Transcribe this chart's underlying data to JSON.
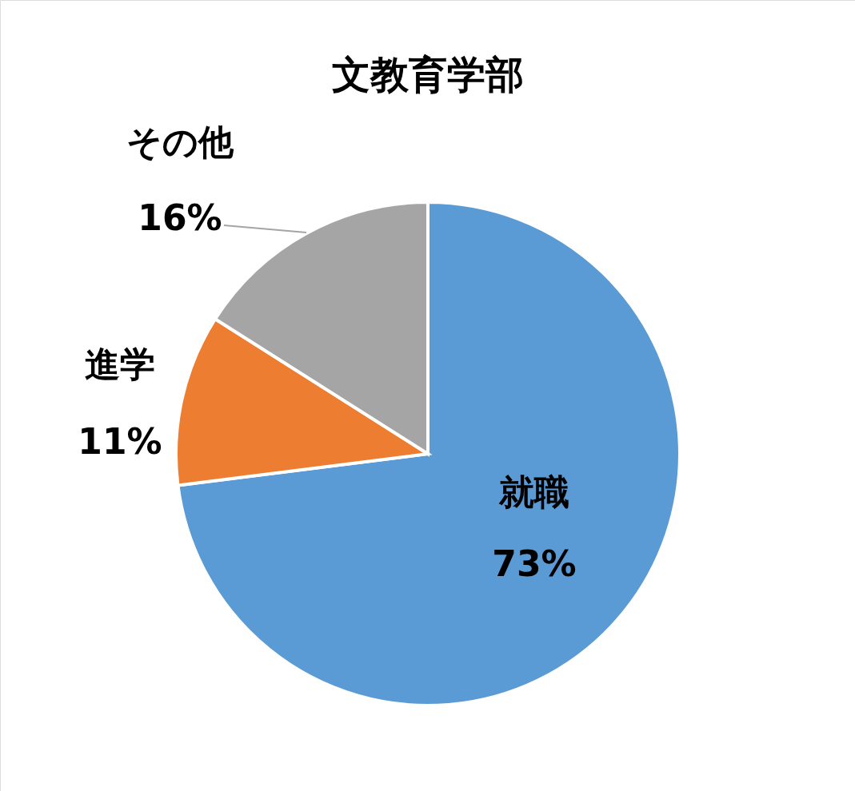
{
  "chart_data": {
    "type": "pie",
    "title": "文教育学部",
    "categories": [
      "就職",
      "進学",
      "その他"
    ],
    "values": [
      73,
      11,
      16
    ],
    "value_labels": [
      "73%",
      "11%",
      "16%"
    ],
    "colors": [
      "#5b9bd5",
      "#ed7d31",
      "#a5a5a5"
    ]
  }
}
